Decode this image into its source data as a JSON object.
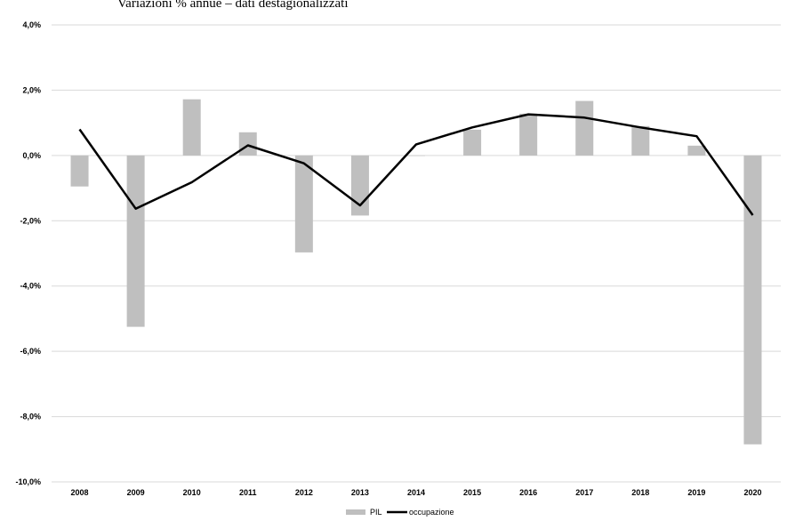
{
  "chart_data": {
    "type": "bar",
    "subtitle": "Variazioni % annue – dati destagionalizzati",
    "categories": [
      "2008",
      "2009",
      "2010",
      "2011",
      "2012",
      "2013",
      "2014",
      "2015",
      "2016",
      "2017",
      "2018",
      "2019",
      "2020"
    ],
    "ylim": [
      -10,
      4
    ],
    "yticks": [
      -10,
      -8,
      -6,
      -4,
      -2,
      0,
      2,
      4
    ],
    "ytick_labels": [
      "-10,0%",
      "-8,0%",
      "-6,0%",
      "-4,0%",
      "-2,0%",
      "0,0%",
      "2,0%",
      "4,0%"
    ],
    "grid": true,
    "legend_position": "bottom",
    "series": [
      {
        "name": "PIL",
        "kind": "bar",
        "color": "#bfbfbf",
        "values": [
          -0.95,
          -5.25,
          1.72,
          0.71,
          -2.97,
          -1.84,
          0.0,
          0.79,
          1.28,
          1.67,
          0.9,
          0.3,
          -8.85
        ]
      },
      {
        "name": "occupazione",
        "kind": "line",
        "color": "#000000",
        "values": [
          0.8,
          -1.63,
          -0.82,
          0.31,
          -0.24,
          -1.53,
          0.34,
          0.86,
          1.26,
          1.16,
          0.86,
          0.59,
          -1.83
        ]
      }
    ]
  }
}
